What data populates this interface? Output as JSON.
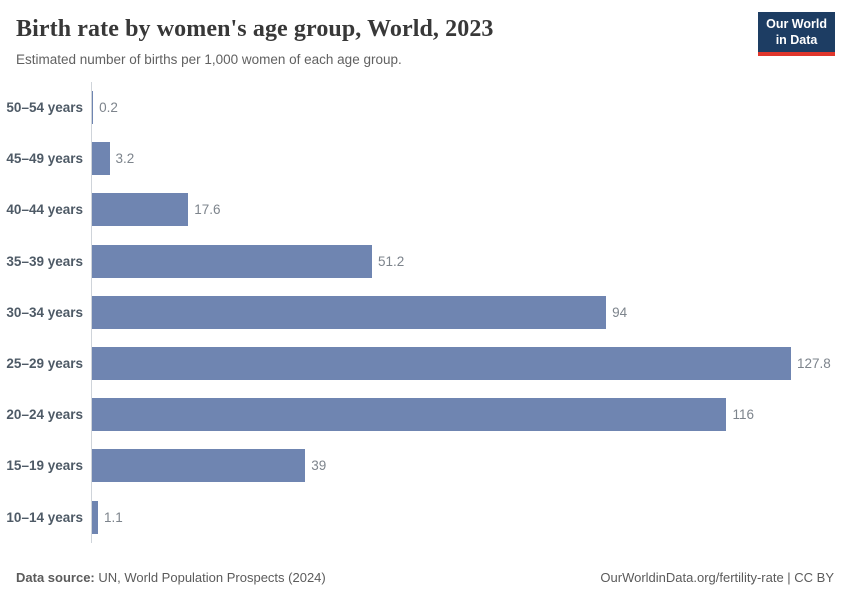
{
  "header": {
    "title": "Birth rate by women's age group, World, 2023",
    "subtitle": "Estimated number of births per 1,000 women of each age group.",
    "logo": {
      "line1": "Our World",
      "line2": "in Data"
    }
  },
  "chart_data": {
    "type": "bar",
    "orientation": "horizontal",
    "title": "Birth rate by women's age group, World, 2023",
    "subtitle": "Estimated number of births per 1,000 women of each age group.",
    "xlabel": "",
    "ylabel": "",
    "xlim": [
      0,
      130
    ],
    "grid": false,
    "legend": "none",
    "bar_color": "#6f85b1",
    "axis_color": "#cfd4da",
    "categories": [
      "50–54 years",
      "45–49 years",
      "40–44 years",
      "35–39 years",
      "30–34 years",
      "25–29 years",
      "20–24 years",
      "15–19 years",
      "10–14 years"
    ],
    "values": [
      0.2,
      3.2,
      17.6,
      51.2,
      94,
      127.8,
      116,
      39,
      1.1
    ],
    "value_labels": [
      "0.2",
      "3.2",
      "17.6",
      "51.2",
      "94",
      "127.8",
      "116",
      "39",
      "1.1"
    ]
  },
  "footer": {
    "source_label": "Data source:",
    "source_text": " UN, World Population Prospects (2024)",
    "right_text": "OurWorldinData.org/fertility-rate | CC BY"
  }
}
